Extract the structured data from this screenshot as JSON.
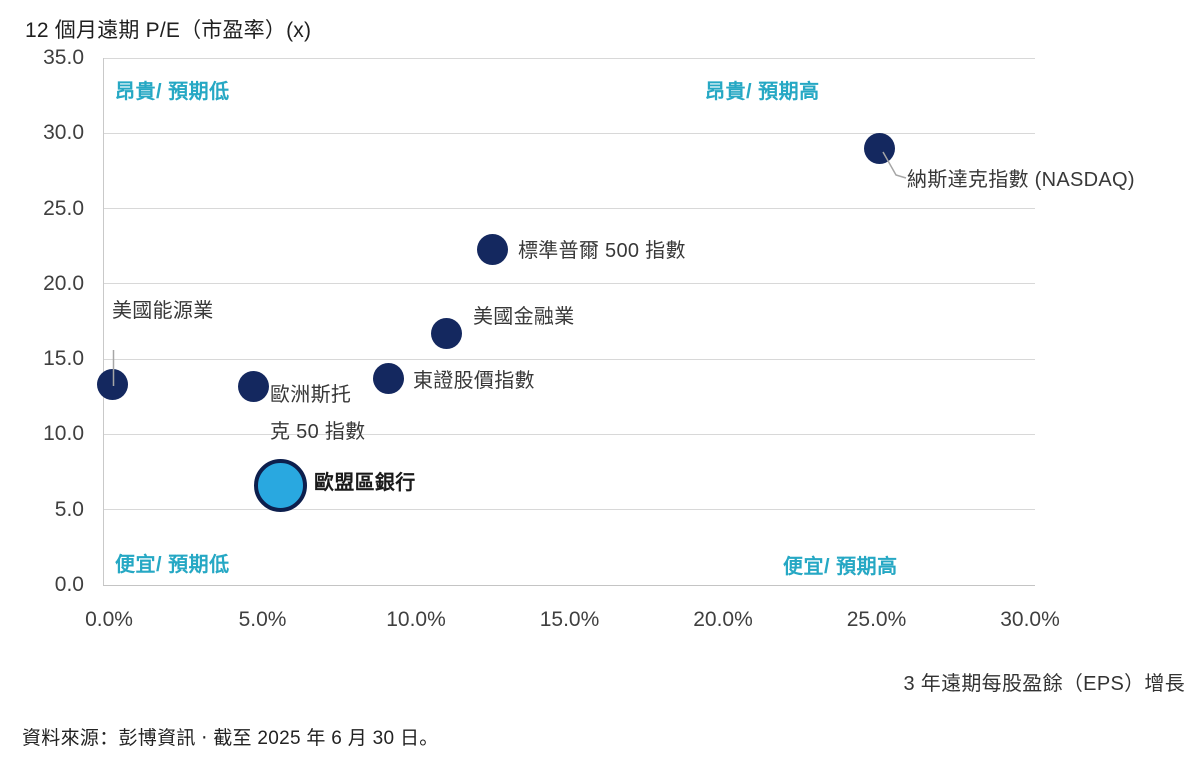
{
  "title": "12 個月遠期 P/E（市盈率）(x)",
  "x_axis_label": "3 年遠期每股盈餘（EPS）增長",
  "source": "資料來源：彭博資訊 ‧ 截至 2025 年 6 月 30 日。",
  "quadrants": {
    "top_left": "昂貴/ 預期低",
    "top_right": "昂貴/ 預期高",
    "bottom_left": "便宜/ 預期低",
    "bottom_right": "便宜/ 預期高"
  },
  "colors": {
    "navy_dot": "#14285f",
    "highlight_fill": "#29a8e0",
    "highlight_border": "#0d1f4d",
    "quadrant_text": "#26a8c4",
    "leader_line": "#a6a6a6"
  },
  "chart_data": {
    "type": "scatter",
    "title": "12 個月遠期 P/E（市盈率）(x)",
    "xlabel": "3 年遠期每股盈餘（EPS）增長",
    "ylabel": "12 個月遠期 P/E（市盈率）(x)",
    "xlim": [
      0,
      30
    ],
    "ylim": [
      0,
      35
    ],
    "x_ticks": [
      "0.0%",
      "5.0%",
      "10.0%",
      "15.0%",
      "20.0%",
      "25.0%",
      "30.0%"
    ],
    "y_ticks": [
      "0.0",
      "5.0",
      "10.0",
      "15.0",
      "20.0",
      "25.0",
      "30.0",
      "35.0"
    ],
    "grid": "horizontal-only",
    "legend": "none",
    "x_unit": "percent",
    "y_unit": "x (P/E multiple)",
    "points": [
      {
        "id": "us-energy",
        "label": "美國能源業",
        "x_pct": 0.1,
        "pe": 13.3,
        "style": "navy"
      },
      {
        "id": "euro-stoxx-50",
        "label": "歐洲斯托克 50 指數",
        "label_lines": [
          "歐洲斯托",
          "克 50 指數"
        ],
        "x_pct": 4.7,
        "pe": 13.2,
        "style": "navy"
      },
      {
        "id": "eurozone-banks",
        "label": "歐盟區銀行",
        "x_pct": 5.6,
        "pe": 6.6,
        "style": "highlight"
      },
      {
        "id": "topix",
        "label": "東證股價指數",
        "x_pct": 9.1,
        "pe": 13.7,
        "style": "navy"
      },
      {
        "id": "us-financials",
        "label": "美國金融業",
        "x_pct": 11.0,
        "pe": 16.7,
        "style": "navy"
      },
      {
        "id": "sp500",
        "label": "標準普爾 500 指數",
        "x_pct": 12.5,
        "pe": 22.3,
        "style": "navy"
      },
      {
        "id": "nasdaq",
        "label": "納斯達克指數 (NASDAQ)",
        "x_pct": 25.1,
        "pe": 29.0,
        "style": "navy"
      }
    ]
  }
}
